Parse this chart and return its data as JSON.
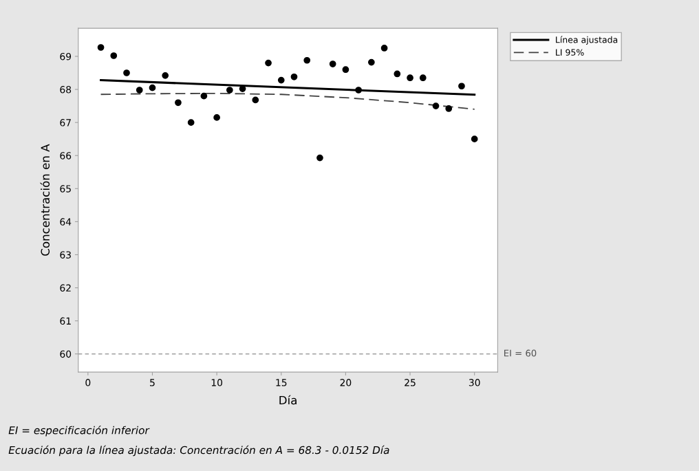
{
  "chart_data": {
    "type": "scatter",
    "xlabel": "Día",
    "ylabel": "Concentración en A",
    "xlim": [
      -0.75,
      31.8
    ],
    "ylim": [
      59.45,
      69.85
    ],
    "xticks": [
      0,
      5,
      10,
      15,
      20,
      25,
      30
    ],
    "yticks": [
      60,
      61,
      62,
      63,
      64,
      65,
      66,
      67,
      68,
      69
    ],
    "x": [
      1,
      2,
      3,
      4,
      5,
      6,
      7,
      8,
      9,
      10,
      11,
      12,
      13,
      14,
      15,
      16,
      17,
      18,
      19,
      20,
      21,
      22,
      23,
      24,
      25,
      26,
      27,
      28,
      29,
      30
    ],
    "series": [
      {
        "color": "#000000",
        "marker": "circle",
        "values": [
          69.27,
          69.02,
          68.5,
          67.98,
          68.05,
          68.42,
          67.6,
          67.0,
          67.8,
          67.15,
          67.98,
          68.02,
          67.68,
          68.8,
          68.28,
          68.38,
          68.88,
          65.93,
          68.77,
          68.6,
          67.98,
          68.82,
          69.25,
          68.47,
          68.35,
          68.35,
          67.5,
          67.42,
          68.1,
          66.5
        ]
      },
      {
        "type": "line",
        "name": "Línea ajustada",
        "color": "#000000",
        "line_style": "solid",
        "x": [
          1,
          30
        ],
        "values": [
          68.28,
          67.84
        ]
      },
      {
        "type": "line",
        "name": "LI 95%",
        "color": "#404040",
        "line_style": "dashed",
        "x": [
          1,
          5,
          10,
          15,
          20,
          25,
          30
        ],
        "values": [
          67.85,
          67.87,
          67.88,
          67.85,
          67.75,
          67.6,
          67.4
        ]
      }
    ],
    "ref_lines": [
      {
        "axis": "y",
        "value": 60,
        "label": "EI = 60",
        "color": "#a0a0a0",
        "line_style": "dashed"
      }
    ],
    "legend": "top right",
    "grid": false,
    "annotations": [
      "EI = especificación inferior",
      "Ecuación para la línea ajustada: Concentración en A = 68.3 - 0.0152 Día"
    ]
  }
}
